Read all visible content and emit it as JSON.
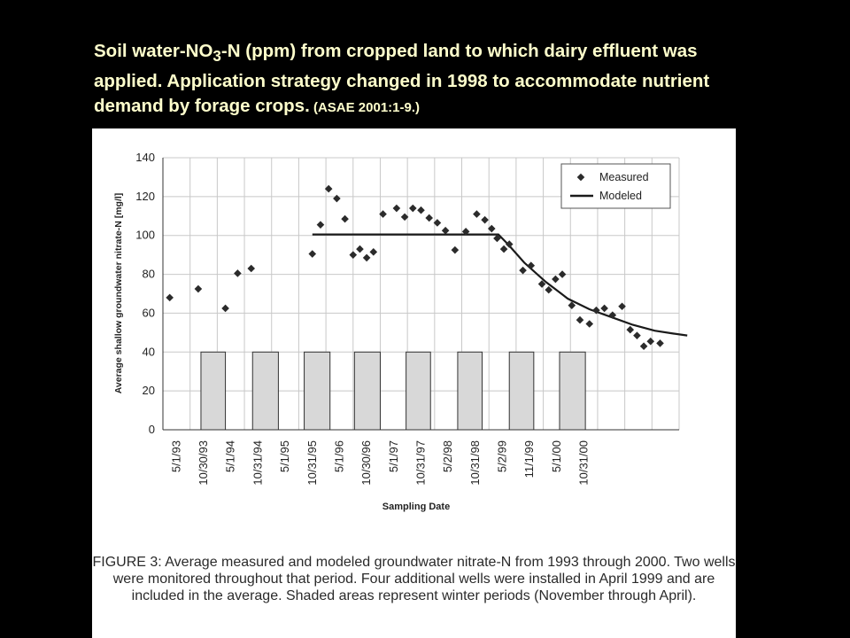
{
  "slide": {
    "title_part1": "Soil water-NO",
    "title_sub": "3",
    "title_part2": "-N (ppm) from cropped land to which dairy effluent was applied.  Application strategy changed in 1998 to accommodate nutrient demand by forage crops.",
    "title_citation": " (ASAE 2001:1-9.)"
  },
  "caption": "FIGURE 3:  Average measured and modeled groundwater nitrate-N from 1993 through 2000. Two wells were monitored throughout that period. Four additional wells were installed in April 1999 and are included in the average. Shaded areas represent winter periods (November through April).",
  "colors": {
    "background": "#000000",
    "title": "#ffffcc",
    "panel": "#ffffff",
    "marker": "#2b2b2b",
    "shade": "#d8d8d8"
  },
  "chart_data": {
    "type": "scatter",
    "xlabel": "Sampling Date",
    "ylabel": "Average shallow groundwater nitrate-N [mg/l]",
    "ylim": [
      0,
      140
    ],
    "yticks": [
      0,
      20,
      40,
      60,
      80,
      100,
      120,
      140
    ],
    "categories": [
      "5/1/93",
      "10/30/93",
      "5/1/94",
      "10/31/94",
      "5/1/95",
      "10/31/95",
      "5/1/96",
      "10/30/96",
      "5/1/97",
      "10/31/97",
      "5/2/98",
      "10/31/98",
      "5/2/99",
      "11/1/99",
      "5/1/00",
      "10/31/00"
    ],
    "grid": true,
    "legend": {
      "position": "top-right",
      "entries": [
        "Measured",
        "Modeled"
      ]
    },
    "series": [
      {
        "name": "Measured",
        "kind": "markers",
        "points": [
          [
            -0.25,
            68
          ],
          [
            0.8,
            72.5
          ],
          [
            1.8,
            62.5
          ],
          [
            2.25,
            80.5
          ],
          [
            2.75,
            83
          ],
          [
            5.0,
            90.5
          ],
          [
            5.3,
            105.5
          ],
          [
            5.6,
            124
          ],
          [
            5.9,
            119
          ],
          [
            6.2,
            108.5
          ],
          [
            6.5,
            90
          ],
          [
            6.75,
            93
          ],
          [
            7.0,
            88.5
          ],
          [
            7.25,
            91.5
          ],
          [
            7.6,
            111
          ],
          [
            8.1,
            114
          ],
          [
            8.4,
            109.5
          ],
          [
            8.7,
            114
          ],
          [
            9.0,
            113
          ],
          [
            9.3,
            109
          ],
          [
            9.6,
            106.5
          ],
          [
            9.9,
            102.5
          ],
          [
            10.25,
            92.5
          ],
          [
            10.65,
            102
          ],
          [
            11.05,
            111
          ],
          [
            11.35,
            108
          ],
          [
            11.6,
            103.5
          ],
          [
            11.8,
            98.5
          ],
          [
            12.05,
            93
          ],
          [
            12.25,
            95.5
          ],
          [
            12.75,
            82
          ],
          [
            13.05,
            84.5
          ],
          [
            13.45,
            75
          ],
          [
            13.7,
            72
          ],
          [
            13.95,
            77.5
          ],
          [
            14.2,
            80
          ],
          [
            14.55,
            64
          ],
          [
            14.85,
            56.5
          ],
          [
            15.2,
            54.5
          ],
          [
            15.45,
            61.5
          ],
          [
            15.75,
            62.5
          ],
          [
            16.05,
            59
          ],
          [
            16.4,
            63.5
          ],
          [
            16.7,
            51.5
          ],
          [
            16.95,
            48.5
          ],
          [
            17.2,
            43
          ],
          [
            17.45,
            45.5
          ],
          [
            17.8,
            44.5
          ]
        ]
      },
      {
        "name": "Modeled",
        "kind": "line",
        "points": [
          [
            5.0,
            100.5
          ],
          [
            11.85,
            100.5
          ],
          [
            12.2,
            95.5
          ],
          [
            12.8,
            86
          ],
          [
            13.6,
            76
          ],
          [
            14.4,
            67.5
          ],
          [
            15.2,
            62
          ],
          [
            16.0,
            58
          ],
          [
            16.8,
            54
          ],
          [
            17.6,
            51
          ],
          [
            18.3,
            49.5
          ],
          [
            18.8,
            48.5
          ]
        ]
      }
    ],
    "shaded_bars": {
      "height": 40,
      "spans": [
        [
          0.9,
          1.8
        ],
        [
          2.8,
          3.75
        ],
        [
          4.7,
          5.65
        ],
        [
          6.55,
          7.5
        ],
        [
          8.45,
          9.35
        ],
        [
          10.35,
          11.25
        ],
        [
          12.25,
          13.15
        ],
        [
          14.1,
          15.05
        ]
      ]
    }
  }
}
